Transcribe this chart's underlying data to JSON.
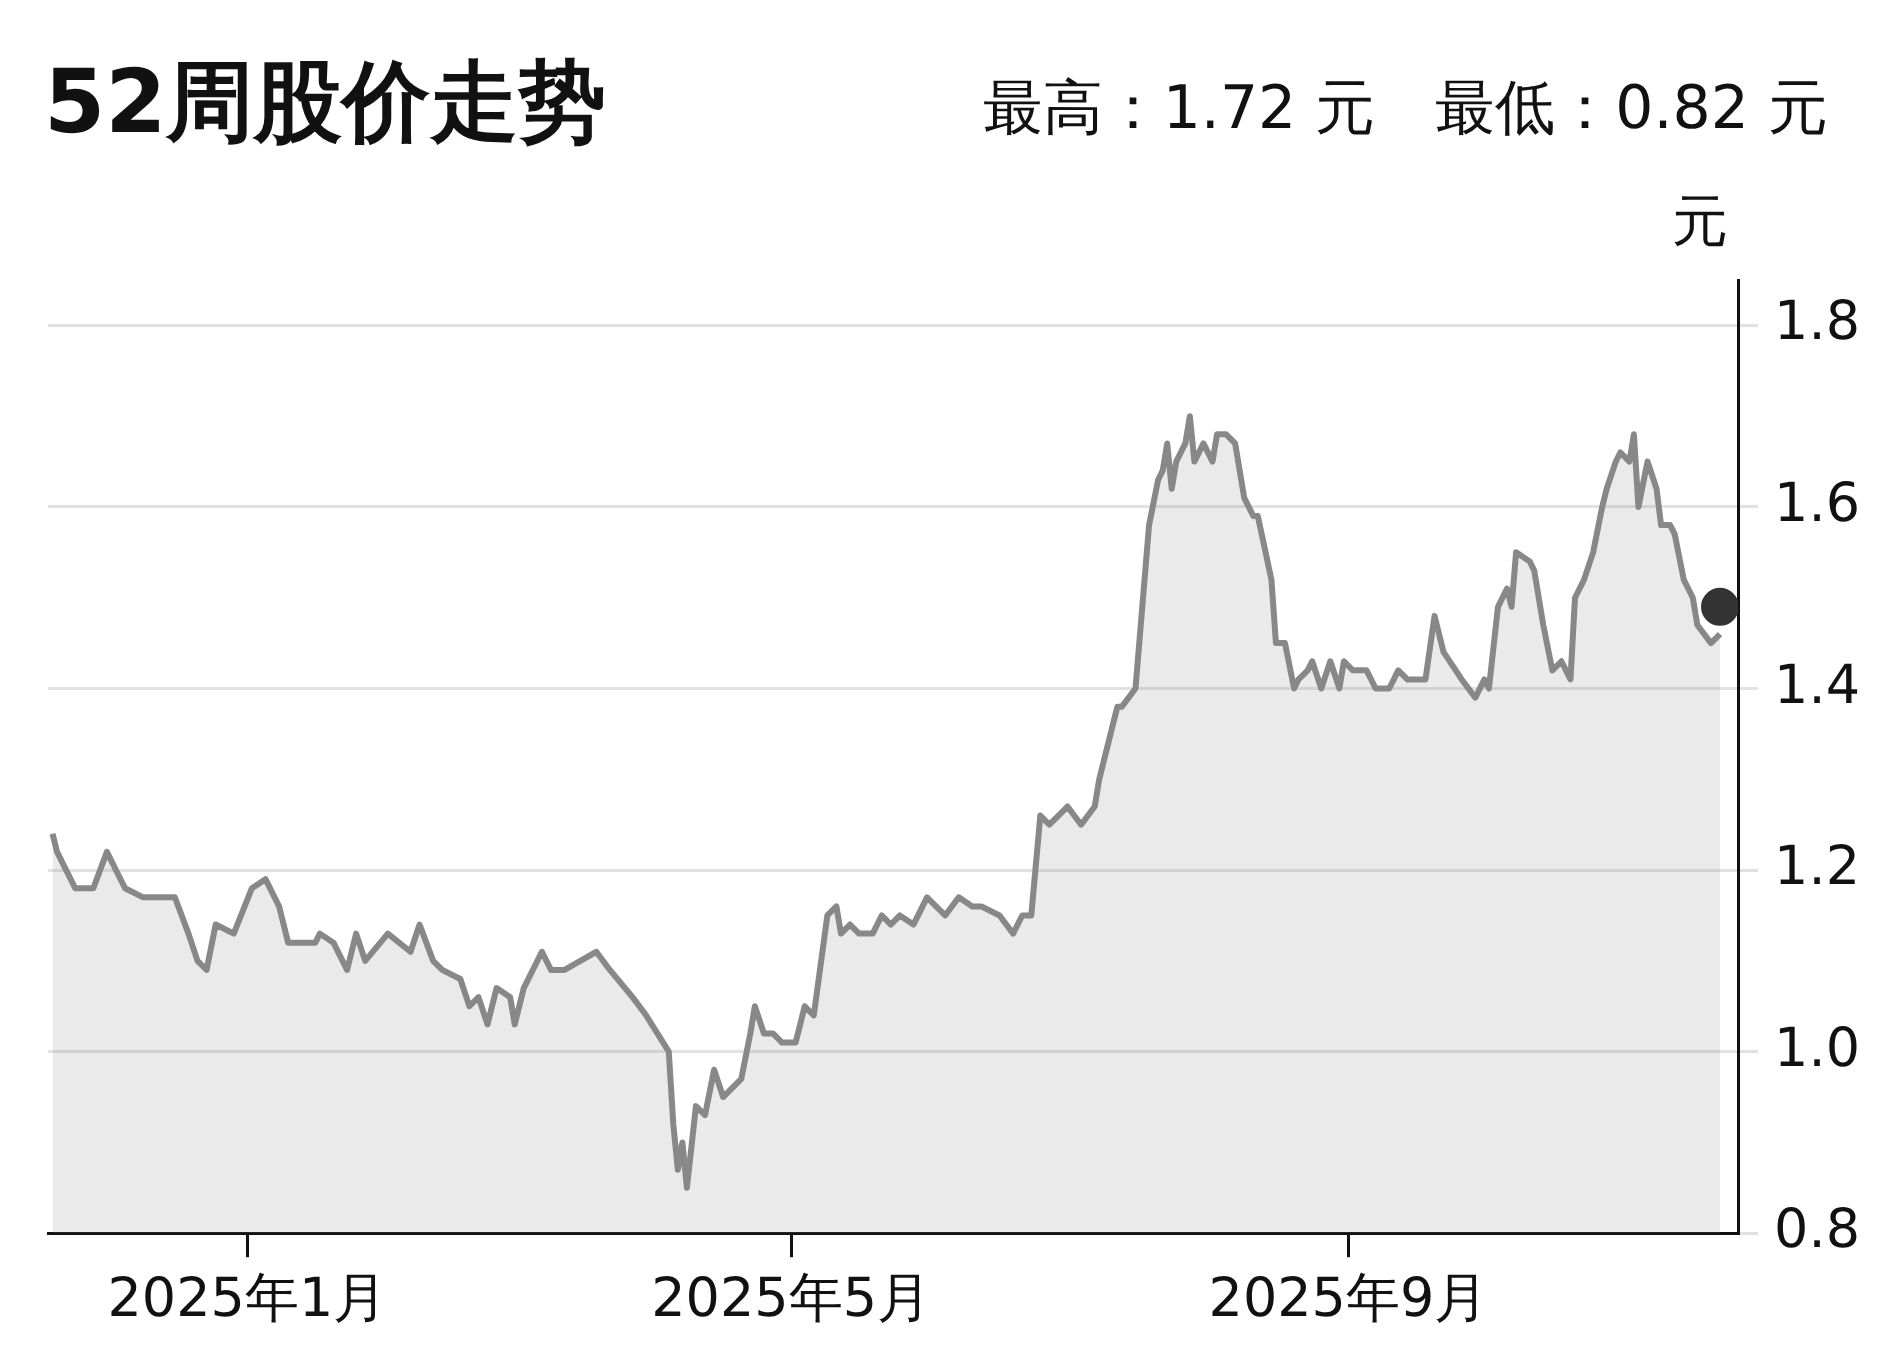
{
  "chart_data": {
    "type": "area",
    "title": "52周股价走势",
    "subtitle": "最高：1.72 元　最低：0.82 元",
    "ylabel": "元",
    "xlim": [
      "2024-11-18",
      "2025-11-26"
    ],
    "xticks": [
      {
        "value": "2025-01-01",
        "label": "2025年1月"
      },
      {
        "value": "2025-05-01",
        "label": "2025年5月"
      },
      {
        "value": "2025-09-01",
        "label": "2025年9月"
      }
    ],
    "ylim": [
      0.8,
      1.85
    ],
    "yticks": [
      0.8,
      {
        "value": 1.0,
        "label": "1.0"
      },
      1.2,
      1.4,
      1.6,
      1.8
    ],
    "grid": "y",
    "legend": false,
    "series": [
      {
        "color": "#888888",
        "marker": "none",
        "x": [
          "2024-11-19",
          "2024-11-20",
          "2024-11-24",
          "2024-11-28",
          "2024-12-01",
          "2024-12-05",
          "2024-12-09",
          "2024-12-13",
          "2024-12-16",
          "2024-12-19",
          "2024-12-21",
          "2024-12-23",
          "2024-12-25",
          "2024-12-29",
          "2025-01-02",
          "2025-01-05",
          "2025-01-08",
          "2025-01-10",
          "2025-01-16",
          "2025-01-17",
          "2025-01-20",
          "2025-01-23",
          "2025-01-25",
          "2025-01-27",
          "2025-02-01",
          "2025-02-06",
          "2025-02-08",
          "2025-02-11",
          "2025-02-13",
          "2025-02-17",
          "2025-02-19",
          "2025-02-21",
          "2025-02-23",
          "2025-02-25",
          "2025-02-28",
          "2025-03-01",
          "2025-03-03",
          "2025-03-07",
          "2025-03-09",
          "2025-03-12",
          "2025-03-19",
          "2025-03-22",
          "2025-03-27",
          "2025-03-30",
          "2025-04-04",
          "2025-04-05",
          "2025-04-06",
          "2025-04-07",
          "2025-04-08",
          "2025-04-10",
          "2025-04-12",
          "2025-04-14",
          "2025-04-16",
          "2025-04-20",
          "2025-04-22",
          "2025-04-23",
          "2025-04-25",
          "2025-04-27",
          "2025-04-29",
          "2025-05-02",
          "2025-05-04",
          "2025-05-06",
          "2025-05-09",
          "2025-05-11",
          "2025-05-12",
          "2025-05-14",
          "2025-05-16",
          "2025-05-19",
          "2025-05-21",
          "2025-05-23",
          "2025-05-25",
          "2025-05-28",
          "2025-05-31",
          "2025-06-04",
          "2025-06-07",
          "2025-06-10",
          "2025-06-12",
          "2025-06-16",
          "2025-06-19",
          "2025-06-21",
          "2025-06-23",
          "2025-06-25",
          "2025-06-27",
          "2025-07-01",
          "2025-07-04",
          "2025-07-07",
          "2025-07-08",
          "2025-07-12",
          "2025-07-13",
          "2025-07-16",
          "2025-07-18",
          "2025-07-19",
          "2025-07-21",
          "2025-07-22",
          "2025-07-23",
          "2025-07-24",
          "2025-07-25",
          "2025-07-27",
          "2025-07-28",
          "2025-07-29",
          "2025-07-31",
          "2025-08-02",
          "2025-08-03",
          "2025-08-05",
          "2025-08-07",
          "2025-08-09",
          "2025-08-11",
          "2025-08-12",
          "2025-08-15",
          "2025-08-16",
          "2025-08-18",
          "2025-08-20",
          "2025-08-21",
          "2025-08-23",
          "2025-08-24",
          "2025-08-26",
          "2025-08-28",
          "2025-08-30",
          "2025-08-31",
          "2025-09-02",
          "2025-09-05",
          "2025-09-07",
          "2025-09-10",
          "2025-09-12",
          "2025-09-14",
          "2025-09-18",
          "2025-09-20",
          "2025-09-22",
          "2025-09-26",
          "2025-09-29",
          "2025-10-01",
          "2025-10-02",
          "2025-10-04",
          "2025-10-06",
          "2025-10-07",
          "2025-10-08",
          "2025-10-11",
          "2025-10-12",
          "2025-10-14",
          "2025-10-16",
          "2025-10-18",
          "2025-10-20",
          "2025-10-21",
          "2025-10-23",
          "2025-10-25",
          "2025-10-27",
          "2025-10-28",
          "2025-10-30",
          "2025-10-31",
          "2025-11-02",
          "2025-11-03",
          "2025-11-04",
          "2025-11-06",
          "2025-11-08",
          "2025-11-09",
          "2025-11-11",
          "2025-11-12",
          "2025-11-14",
          "2025-11-16",
          "2025-11-17",
          "2025-11-20",
          "2025-11-22"
        ],
        "values": [
          1.24,
          1.22,
          1.18,
          1.18,
          1.22,
          1.18,
          1.17,
          1.17,
          1.17,
          1.13,
          1.1,
          1.09,
          1.14,
          1.13,
          1.18,
          1.19,
          1.16,
          1.12,
          1.12,
          1.13,
          1.12,
          1.09,
          1.13,
          1.1,
          1.13,
          1.11,
          1.14,
          1.1,
          1.09,
          1.08,
          1.05,
          1.06,
          1.03,
          1.07,
          1.06,
          1.03,
          1.07,
          1.11,
          1.09,
          1.09,
          1.11,
          1.09,
          1.06,
          1.04,
          1.0,
          0.92,
          0.87,
          0.9,
          0.85,
          0.94,
          0.93,
          0.98,
          0.95,
          0.97,
          1.02,
          1.05,
          1.02,
          1.02,
          1.01,
          1.01,
          1.05,
          1.04,
          1.15,
          1.16,
          1.13,
          1.14,
          1.13,
          1.13,
          1.15,
          1.14,
          1.15,
          1.14,
          1.17,
          1.15,
          1.17,
          1.16,
          1.16,
          1.15,
          1.13,
          1.15,
          1.15,
          1.26,
          1.25,
          1.27,
          1.25,
          1.27,
          1.3,
          1.38,
          1.38,
          1.4,
          1.52,
          1.58,
          1.63,
          1.64,
          1.67,
          1.62,
          1.65,
          1.67,
          1.7,
          1.65,
          1.67,
          1.65,
          1.68,
          1.68,
          1.67,
          1.61,
          1.59,
          1.59,
          1.52,
          1.45,
          1.45,
          1.4,
          1.41,
          1.42,
          1.43,
          1.4,
          1.43,
          1.4,
          1.43,
          1.42,
          1.42,
          1.4,
          1.4,
          1.42,
          1.41,
          1.41,
          1.48,
          1.44,
          1.41,
          1.39,
          1.41,
          1.4,
          1.49,
          1.51,
          1.49,
          1.55,
          1.54,
          1.53,
          1.47,
          1.42,
          1.43,
          1.41,
          1.5,
          1.52,
          1.55,
          1.6,
          1.62,
          1.65,
          1.66,
          1.65,
          1.68,
          1.6,
          1.65,
          1.62,
          1.58,
          1.58,
          1.57,
          1.52,
          1.5,
          1.47,
          1.45,
          1.46
        ]
      },
      {
        "type": "scatter",
        "color": "#333333",
        "marker": "circle",
        "x": [
          "2025-11-22"
        ],
        "values": [
          1.49
        ]
      }
    ]
  }
}
